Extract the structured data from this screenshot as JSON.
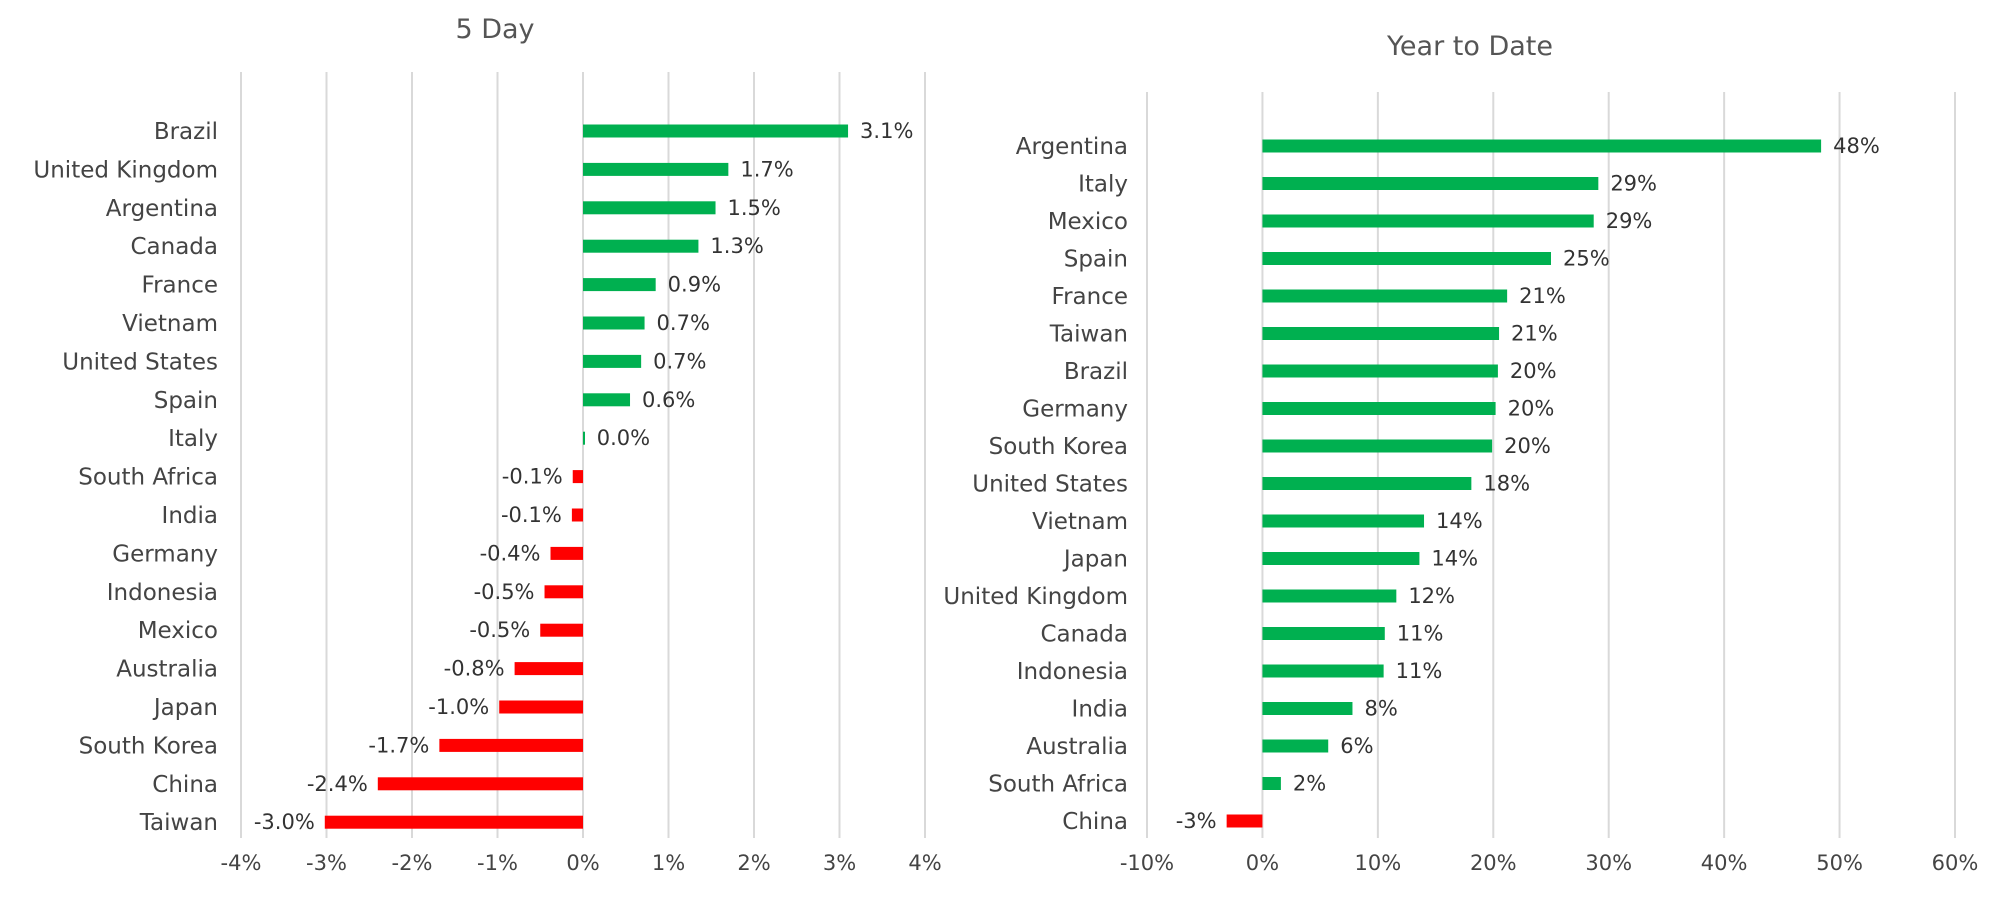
{
  "chart_data": [
    {
      "type": "bar",
      "orientation": "horizontal",
      "title": "5 Day",
      "xlabel": "",
      "ylabel": "",
      "xlim": [
        -4,
        4
      ],
      "ticks": [
        -4,
        -3,
        -2,
        -1,
        0,
        1,
        2,
        3,
        4
      ],
      "tick_labels": [
        "-4%",
        "-3%",
        "-2%",
        "-1%",
        "0%",
        "1%",
        "2%",
        "3%",
        "4%"
      ],
      "grid": true,
      "categories": [
        "Brazil",
        "United Kingdom",
        "Argentina",
        "Canada",
        "France",
        "Vietnam",
        "United States",
        "Spain",
        "Italy",
        "South Africa",
        "India",
        "Germany",
        "Indonesia",
        "Mexico",
        "Australia",
        "Japan",
        "South Korea",
        "China",
        "Taiwan"
      ],
      "values": [
        3.1,
        1.7,
        1.55,
        1.35,
        0.85,
        0.72,
        0.68,
        0.55,
        0.02,
        -0.12,
        -0.13,
        -0.38,
        -0.45,
        -0.5,
        -0.8,
        -0.98,
        -1.68,
        -2.4,
        -3.02
      ],
      "labels": [
        "3.1%",
        "1.7%",
        "1.5%",
        "1.3%",
        "0.9%",
        "0.7%",
        "0.7%",
        "0.6%",
        "0.0%",
        "-0.1%",
        "-0.1%",
        "-0.4%",
        "-0.5%",
        "-0.5%",
        "-0.8%",
        "-1.0%",
        "-1.7%",
        "-2.4%",
        "-3.0%"
      ],
      "colors": {
        "positive": "#00b050",
        "negative": "#ff0000"
      }
    },
    {
      "type": "bar",
      "orientation": "horizontal",
      "title": "Year to Date",
      "xlabel": "",
      "ylabel": "",
      "xlim": [
        -10,
        60
      ],
      "ticks": [
        -10,
        0,
        10,
        20,
        30,
        40,
        50,
        60
      ],
      "tick_labels": [
        "-10%",
        "0%",
        "10%",
        "20%",
        "30%",
        "40%",
        "50%",
        "60%"
      ],
      "grid": true,
      "categories": [
        "Argentina",
        "Italy",
        "Mexico",
        "Spain",
        "France",
        "Taiwan",
        "Brazil",
        "Germany",
        "South Korea",
        "United States",
        "Vietnam",
        "Japan",
        "United Kingdom",
        "Canada",
        "Indonesia",
        "India",
        "Australia",
        "South Africa",
        "China"
      ],
      "values": [
        48.4,
        29.1,
        28.7,
        25.0,
        21.2,
        20.5,
        20.4,
        20.2,
        19.9,
        18.1,
        14.0,
        13.6,
        11.6,
        10.6,
        10.5,
        7.8,
        5.7,
        1.6,
        -3.1
      ],
      "labels": [
        "48%",
        "29%",
        "29%",
        "25%",
        "21%",
        "21%",
        "20%",
        "20%",
        "20%",
        "18%",
        "14%",
        "14%",
        "12%",
        "11%",
        "11%",
        "8%",
        "6%",
        "2%",
        "-3%"
      ],
      "colors": {
        "positive": "#00b050",
        "negative": "#ff0000"
      }
    }
  ]
}
